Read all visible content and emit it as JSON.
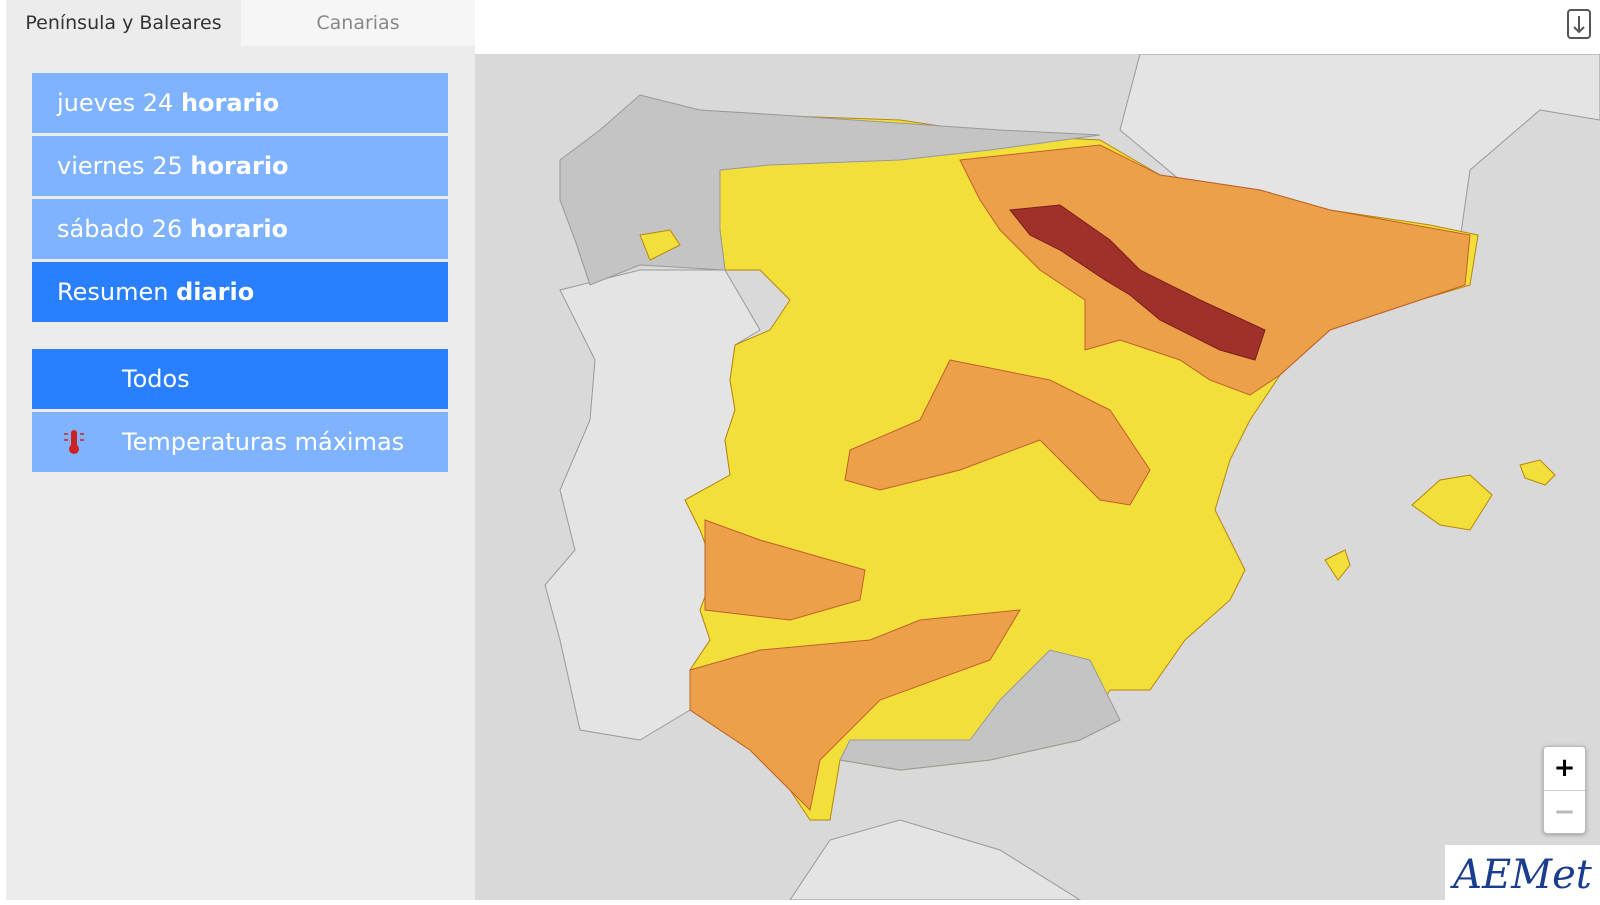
{
  "tabs": [
    "Península y Baleares",
    "Canarias"
  ],
  "menu": [
    {
      "day": "jueves 24",
      "mode": "horario"
    },
    {
      "day": "viernes 25",
      "mode": "horario"
    },
    {
      "day": "sábado 26",
      "mode": "horario"
    },
    {
      "day": "Resumen",
      "mode": "diario"
    }
  ],
  "filters": [
    "Todos",
    "Temperaturas máximas"
  ],
  "zoom": [
    "+",
    "−"
  ],
  "logo": "AEMet"
}
